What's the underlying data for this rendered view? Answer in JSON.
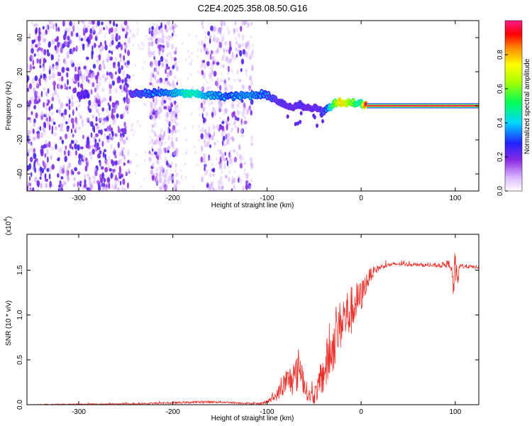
{
  "title": "C2E4.2025.358.08.50.G16",
  "colors": {
    "snr_line": "#e8302a",
    "background": "#ffffff",
    "axis": "#000000"
  },
  "colorbar": {
    "label": "Normalized spectral amplitude",
    "ticks": [
      "0.0",
      "0.2",
      "0.4",
      "0.6",
      "0.8"
    ],
    "range": [
      0,
      1
    ]
  },
  "chart_data": [
    {
      "type": "heatmap",
      "name": "spectrogram",
      "title": "C2E4.2025.358.08.50.G16",
      "xlabel": "Height of straight line (km)",
      "ylabel": "Frequency (Hz)",
      "xlim": [
        -355,
        125
      ],
      "ylim": [
        -50,
        50
      ],
      "xticks": [
        -300,
        -200,
        -100,
        0,
        100
      ],
      "xtick_labels": [
        "-300",
        "-200",
        "-100",
        "0",
        "100"
      ],
      "yticks": [
        -40,
        -20,
        0,
        20,
        40
      ],
      "ytick_labels": [
        "-40",
        "-20",
        "0",
        "20",
        "40"
      ],
      "noise_bands_km": [
        [
          -355,
          -245
        ],
        [
          -225,
          -195
        ],
        [
          -170,
          -115
        ]
      ],
      "trace": {
        "x": [
          -300,
          -280,
          -250,
          -220,
          -200,
          -180,
          -160,
          -140,
          -120,
          -105,
          -95,
          -85,
          -75,
          -65,
          -55,
          -48,
          -42,
          -36,
          -30,
          -25,
          -20,
          -15,
          -10,
          -5,
          0,
          5,
          50,
          100,
          125
        ],
        "freq": [
          6.5,
          7,
          7,
          7.5,
          7.5,
          7,
          6,
          5.5,
          6,
          7,
          5,
          2,
          -1,
          1,
          -2,
          0,
          -4,
          -2,
          1,
          2.5,
          2,
          1.5,
          2.5,
          1,
          1.5,
          0,
          0,
          0,
          0
        ],
        "amplitude": [
          0.25,
          0.3,
          0.3,
          0.4,
          0.45,
          0.55,
          0.45,
          0.4,
          0.45,
          0.4,
          0.35,
          0.3,
          0.3,
          0.3,
          0.25,
          0.3,
          0.3,
          0.4,
          0.6,
          0.75,
          0.85,
          0.75,
          0.7,
          0.6,
          0.55,
          0.97,
          0.97,
          0.97,
          0.97
        ]
      }
    },
    {
      "type": "line",
      "name": "snr",
      "xlabel": "Height of straight line (km)",
      "ylabel": "SNR (10 * v/v)",
      "scale_label": "(x10",
      "scale_exp": "4",
      "scale_close": ")",
      "xlim": [
        -355,
        125
      ],
      "ylim": [
        0,
        1.9
      ],
      "xticks": [
        -300,
        -200,
        -100,
        0,
        100
      ],
      "xtick_labels": [
        "-300",
        "-200",
        "-100",
        "0",
        "100"
      ],
      "yticks": [
        0,
        0.5,
        1.0,
        1.5
      ],
      "ytick_labels": [
        "0.0",
        "0.5",
        "1.0",
        "1.5"
      ],
      "series": [
        {
          "name": "SNR",
          "x": [
            -355,
            -250,
            -200,
            -170,
            -150,
            -130,
            -110,
            -100,
            -90,
            -80,
            -70,
            -65,
            -60,
            -55,
            -50,
            -45,
            -40,
            -35,
            -30,
            -25,
            -20,
            -15,
            -10,
            -5,
            0,
            5,
            10,
            15,
            20,
            25,
            30,
            40,
            60,
            80,
            95,
            98,
            100,
            102,
            105,
            115,
            125
          ],
          "y": [
            0.0,
            0.01,
            0.02,
            0.03,
            0.03,
            0.02,
            0.01,
            0.03,
            0.1,
            0.25,
            0.3,
            0.45,
            0.2,
            0.1,
            0.1,
            0.2,
            0.35,
            0.5,
            0.65,
            0.8,
            0.95,
            1.0,
            1.05,
            1.15,
            1.2,
            1.35,
            1.45,
            1.5,
            1.53,
            1.55,
            1.56,
            1.57,
            1.56,
            1.55,
            1.57,
            1.3,
            1.6,
            1.35,
            1.55,
            1.54,
            1.53
          ],
          "noise": [
            0.005,
            0.008,
            0.01,
            0.015,
            0.012,
            0.01,
            0.01,
            0.02,
            0.06,
            0.15,
            0.2,
            0.25,
            0.12,
            0.08,
            0.1,
            0.15,
            0.25,
            0.3,
            0.3,
            0.28,
            0.3,
            0.3,
            0.28,
            0.22,
            0.18,
            0.12,
            0.08,
            0.05,
            0.03,
            0.025,
            0.02,
            0.02,
            0.02,
            0.02,
            0.05,
            0.15,
            0.2,
            0.12,
            0.03,
            0.02,
            0.02
          ]
        }
      ]
    }
  ]
}
